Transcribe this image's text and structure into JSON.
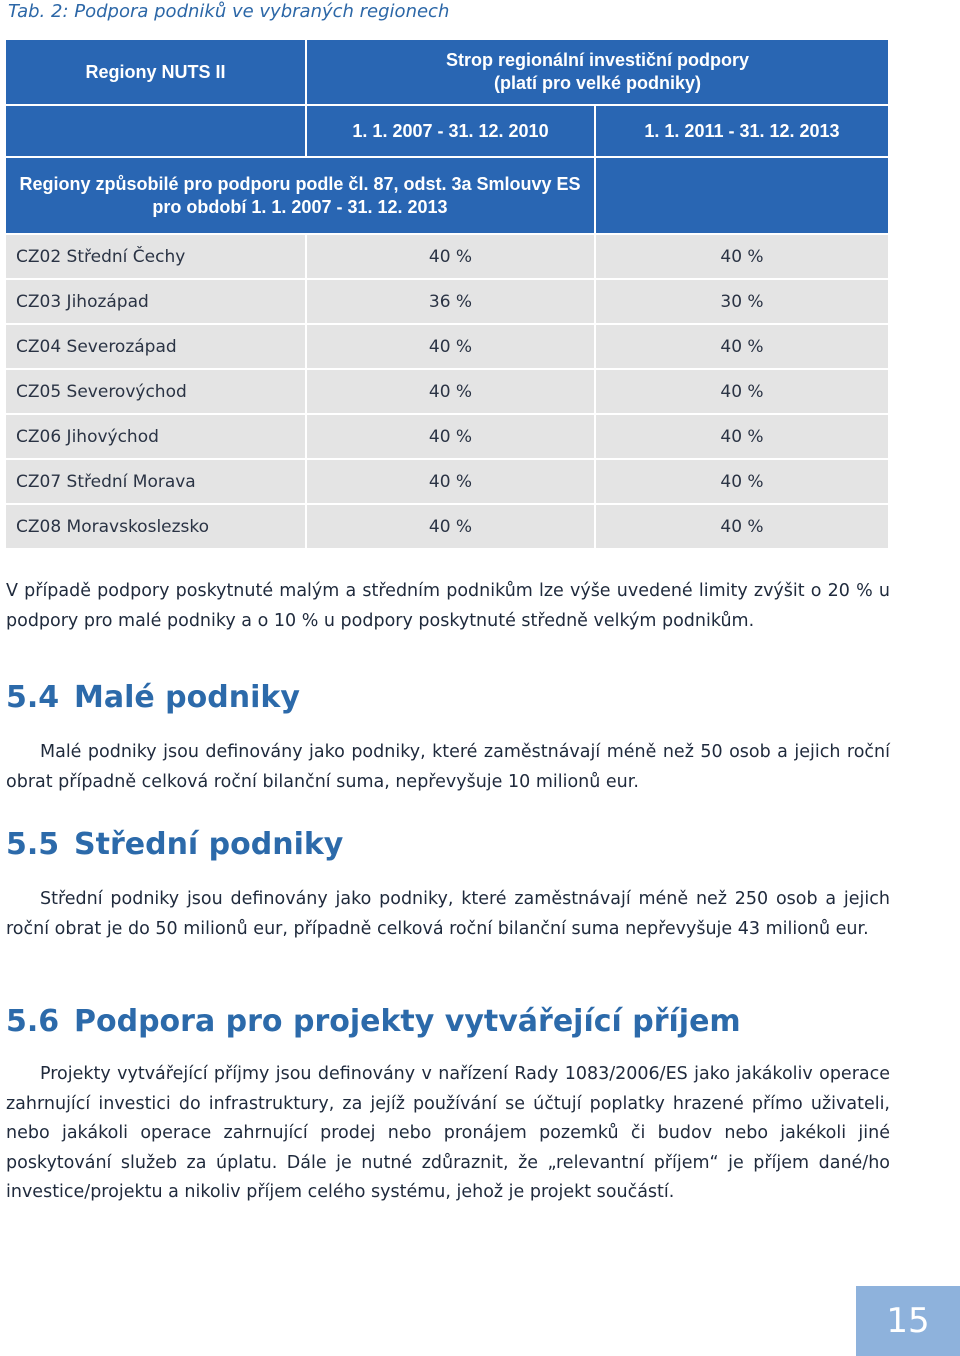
{
  "caption": "Tab. 2: Podpora podniků ve vybraných regionech",
  "table": {
    "header_col1": "Regiony NUTS II",
    "header_group": "Strop regionální investiční podpory (platí pro velké podniky)",
    "period_1": "1. 1. 2007 - 31. 12. 2010",
    "period_2": "1. 1. 2011 - 31. 12. 2013",
    "eligible_line1": "Regiony způsobilé pro podporu podle čl. 87, odst. 3a Smlouvy ES",
    "eligible_line2": "pro období 1. 1. 2007 - 31. 12. 2013",
    "rows": [
      {
        "region": "CZ02 Střední Čechy",
        "v1": "40 %",
        "v2": "40 %"
      },
      {
        "region": "CZ03 Jihozápad",
        "v1": "36 %",
        "v2": "30 %"
      },
      {
        "region": "CZ04 Severozápad",
        "v1": "40 %",
        "v2": "40 %"
      },
      {
        "region": "CZ05 Severovýchod",
        "v1": "40 %",
        "v2": "40 %"
      },
      {
        "region": "CZ06 Jihovýchod",
        "v1": "40 %",
        "v2": "40 %"
      },
      {
        "region": "CZ07 Střední Morava",
        "v1": "40 %",
        "v2": "40 %"
      },
      {
        "region": "CZ08 Moravskoslezsko",
        "v1": "40 %",
        "v2": "40 %"
      }
    ]
  },
  "note": "V případě podpory poskytnuté malým a středním podnikům lze výše uvedené limity zvýšit o 20 % u podpory pro malé podniky a o 10 % u podpory poskytnuté středně velkým podnikům.",
  "sections": [
    {
      "number": "5.4",
      "title": "Malé podniky",
      "text": "Malé podniky jsou definovány jako podniky, které zaměstnávají méně než 50 osob a jejich roční obrat případně celková roční bilanční suma, nepřevyšuje 10 milionů eur."
    },
    {
      "number": "5.5",
      "title": "Střední podniky",
      "text": "Střední podniky jsou definovány jako podniky, které zaměstnávají méně než 250 osob a jejich roční obrat je do 50 milionů eur, případně celková roční bilanční suma nepřevyšuje 43 milionů eur."
    },
    {
      "number": "5.6",
      "title": "Podpora pro projekty vytvářející příjem",
      "text": "Projekty vytvářející příjmy jsou definovány v nařízení Rady 1083/2006/ES jako jakákoliv operace zahrnující investici do infrastruktury, za jejíž používání se účtují poplatky hrazené pří­mo uživateli, nebo jakákoli operace zahrnující prodej nebo pronájem pozemků či budov nebo jakékoli jiné poskytování služeb za úplatu. Dále je nutné zdůraznit, že „relevantní příjem“ je příjem dané/ho investice/projektu a nikoliv příjem celého systému, jehož je projekt součástí."
    }
  ],
  "page_number": "15",
  "colors": {
    "header_blue": "#2966b3",
    "heading_blue": "#2c6aaa",
    "row_gray": "#e4e4e4",
    "page_box": "#8eb2dc"
  }
}
